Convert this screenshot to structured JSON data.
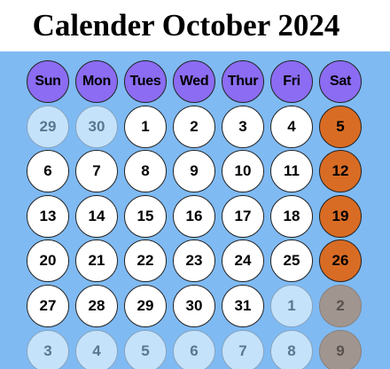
{
  "title": "Calender October 2024",
  "weekdays": [
    "Sun",
    "Mon",
    "Tues",
    "Wed",
    "Thur",
    "Fri",
    "Sat"
  ],
  "weeks": [
    [
      {
        "day": "29",
        "kind": "muted"
      },
      {
        "day": "30",
        "kind": "muted"
      },
      {
        "day": "1",
        "kind": "normal"
      },
      {
        "day": "2",
        "kind": "normal"
      },
      {
        "day": "3",
        "kind": "normal"
      },
      {
        "day": "4",
        "kind": "normal"
      },
      {
        "day": "5",
        "kind": "weekend"
      }
    ],
    [
      {
        "day": "6",
        "kind": "normal"
      },
      {
        "day": "7",
        "kind": "normal"
      },
      {
        "day": "8",
        "kind": "normal"
      },
      {
        "day": "9",
        "kind": "normal"
      },
      {
        "day": "10",
        "kind": "normal"
      },
      {
        "day": "11",
        "kind": "normal"
      },
      {
        "day": "12",
        "kind": "weekend"
      }
    ],
    [
      {
        "day": "13",
        "kind": "normal"
      },
      {
        "day": "14",
        "kind": "normal"
      },
      {
        "day": "15",
        "kind": "normal"
      },
      {
        "day": "16",
        "kind": "normal"
      },
      {
        "day": "17",
        "kind": "normal"
      },
      {
        "day": "18",
        "kind": "normal"
      },
      {
        "day": "19",
        "kind": "weekend"
      }
    ],
    [
      {
        "day": "20",
        "kind": "normal"
      },
      {
        "day": "21",
        "kind": "normal"
      },
      {
        "day": "22",
        "kind": "normal"
      },
      {
        "day": "23",
        "kind": "normal"
      },
      {
        "day": "24",
        "kind": "normal"
      },
      {
        "day": "25",
        "kind": "normal"
      },
      {
        "day": "26",
        "kind": "weekend"
      }
    ],
    [
      {
        "day": "27",
        "kind": "normal"
      },
      {
        "day": "28",
        "kind": "normal"
      },
      {
        "day": "29",
        "kind": "normal"
      },
      {
        "day": "30",
        "kind": "normal"
      },
      {
        "day": "31",
        "kind": "normal"
      },
      {
        "day": "1",
        "kind": "muted"
      },
      {
        "day": "2",
        "kind": "weekend-muted"
      }
    ],
    [
      {
        "day": "3",
        "kind": "muted"
      },
      {
        "day": "4",
        "kind": "muted"
      },
      {
        "day": "5",
        "kind": "muted"
      },
      {
        "day": "6",
        "kind": "muted"
      },
      {
        "day": "7",
        "kind": "muted"
      },
      {
        "day": "8",
        "kind": "muted"
      },
      {
        "day": "9",
        "kind": "weekend-muted"
      }
    ]
  ],
  "colors": {
    "panel": "#7fbaf3",
    "header": "#8b6cf3",
    "weekend": "#d96c24",
    "muted": "#c5e2fb",
    "weekend_muted": "#a19590"
  }
}
